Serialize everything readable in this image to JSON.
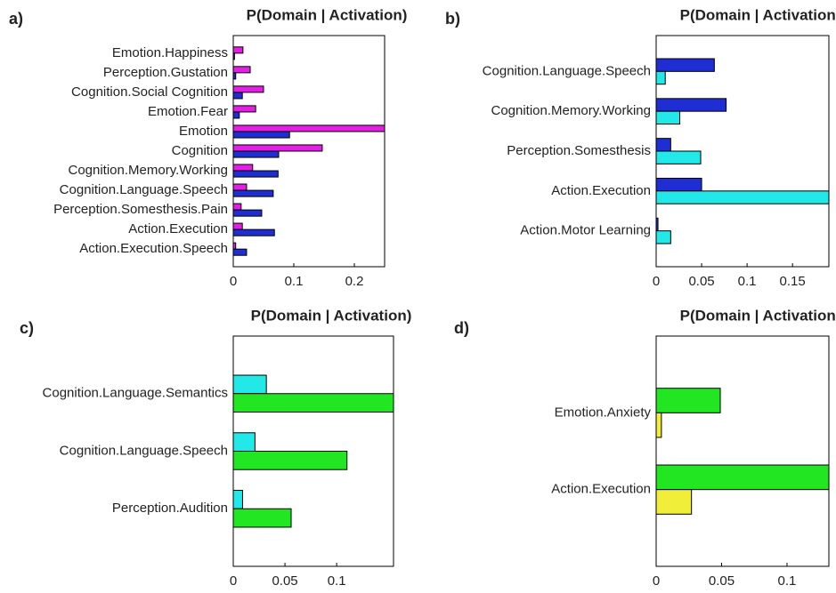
{
  "chart_data": [
    {
      "type": "barh",
      "label": "a)",
      "title": "P(Domain | Activation)",
      "categories": [
        "Emotion.Happiness",
        "Perception.Gustation",
        "Cognition.Social Cognition",
        "Emotion.Fear",
        "Emotion",
        "Cognition",
        "Cognition.Memory.Working",
        "Cognition.Language.Speech",
        "Perception.Somesthesis.Pain",
        "Action.Execution",
        "Action.Execution.Speech"
      ],
      "series": [
        {
          "color": "#e41ee4",
          "values": [
            0.016,
            0.028,
            0.05,
            0.037,
            0.25,
            0.147,
            0.032,
            0.022,
            0.013,
            0.015,
            0.004
          ]
        },
        {
          "color": "#1e2ed2",
          "values": [
            0.002,
            0.004,
            0.015,
            0.01,
            0.093,
            0.075,
            0.074,
            0.066,
            0.047,
            0.068,
            0.022
          ]
        }
      ],
      "xlim": [
        0,
        0.25
      ],
      "xticks": [
        0,
        0.1,
        0.2
      ]
    },
    {
      "type": "barh",
      "label": "b)",
      "title": "P(Domain | Activation)",
      "categories": [
        "Cognition.Language.Speech",
        "Cognition.Memory.Working",
        "Perception.Somesthesis",
        "Action.Execution",
        "Action.Motor Learning"
      ],
      "series": [
        {
          "color": "#1e2ed2",
          "values": [
            0.064,
            0.077,
            0.016,
            0.05,
            0.002
          ]
        },
        {
          "color": "#22e8e8",
          "values": [
            0.01,
            0.026,
            0.049,
            0.19,
            0.016
          ]
        }
      ],
      "xlim": [
        0,
        0.19
      ],
      "xticks": [
        0,
        0.05,
        0.1,
        0.15
      ]
    },
    {
      "type": "barh",
      "label": "c)",
      "title": "P(Domain | Activation)",
      "categories": [
        "Cognition.Language.Semantics",
        "Cognition.Language.Speech",
        "Perception.Audition"
      ],
      "series": [
        {
          "color": "#22e8e8",
          "values": [
            0.032,
            0.021,
            0.009
          ]
        },
        {
          "color": "#22e622",
          "values": [
            0.155,
            0.11,
            0.056
          ]
        }
      ],
      "xlim": [
        0,
        0.155
      ],
      "xticks": [
        0,
        0.05,
        0.1
      ]
    },
    {
      "type": "barh",
      "label": "d)",
      "title": "P(Domain | Activation)",
      "categories": [
        "Emotion.Anxiety",
        "Action.Execution"
      ],
      "series": [
        {
          "color": "#22e622",
          "values": [
            0.049,
            0.132
          ]
        },
        {
          "color": "#f0ee38",
          "values": [
            0.004,
            0.027
          ]
        }
      ],
      "xlim": [
        0,
        0.132
      ],
      "xticks": [
        0,
        0.05,
        0.1
      ]
    }
  ]
}
